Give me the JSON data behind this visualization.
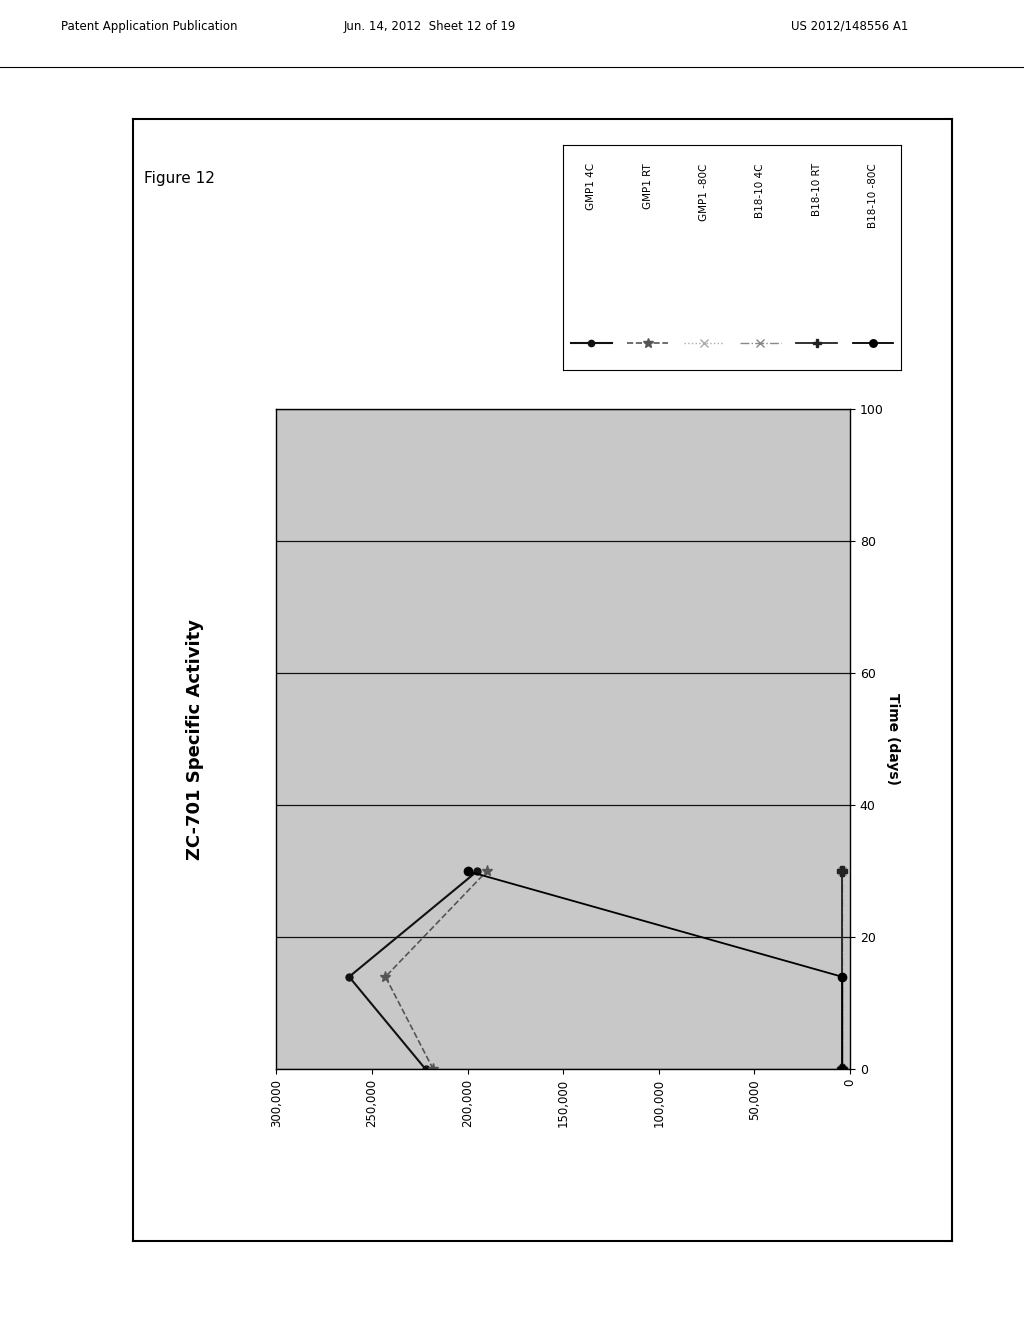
{
  "title": "ZC-701 Specific Activity",
  "time_label": "Time (days)",
  "figure_label": "Figure 12",
  "header_left": "Patent Application Publication",
  "header_center": "Jun. 14, 2012  Sheet 12 of 19",
  "header_right": "US 2012/148556 A1",
  "activity_lim": [
    0,
    300000
  ],
  "time_lim": [
    0,
    100
  ],
  "activity_ticks": [
    0,
    50000,
    100000,
    150000,
    200000,
    250000,
    300000
  ],
  "time_ticks": [
    0,
    20,
    40,
    60,
    80,
    100
  ],
  "series": [
    {
      "label": "GMP1 4C",
      "color": "#111111",
      "marker": "o",
      "markersize": 5,
      "linestyle": "-",
      "linewidth": 1.5,
      "time": [
        0,
        14,
        30
      ],
      "activity": [
        222000,
        262000,
        195000
      ]
    },
    {
      "label": "GMP1 RT",
      "color": "#555555",
      "marker": "*",
      "markersize": 8,
      "linestyle": "--",
      "linewidth": 1.2,
      "time": [
        0,
        14,
        30
      ],
      "activity": [
        218000,
        243000,
        190000
      ]
    },
    {
      "label": "GMP1 -80C",
      "color": "#aaaaaa",
      "marker": "x",
      "markersize": 6,
      "linestyle": ":",
      "linewidth": 1.0,
      "time": [
        0,
        30
      ],
      "activity": [
        4000,
        4000
      ]
    },
    {
      "label": "B18-10 4C",
      "color": "#888888",
      "marker": "x",
      "markersize": 6,
      "linestyle": "-.",
      "linewidth": 1.0,
      "time": [
        0,
        30
      ],
      "activity": [
        4000,
        4000
      ]
    },
    {
      "label": "B18-10 RT",
      "color": "#222222",
      "marker": "P",
      "markersize": 7,
      "linestyle": "-",
      "linewidth": 1.3,
      "time": [
        0,
        30
      ],
      "activity": [
        4000,
        4000
      ]
    },
    {
      "label": "B18-10 -80C",
      "color": "#000000",
      "marker": "o",
      "markersize": 6,
      "linestyle": "-",
      "linewidth": 1.3,
      "time": [
        0,
        14,
        30
      ],
      "activity": [
        4000,
        4000,
        200000
      ]
    }
  ],
  "plot_area_color": "#c8c8c8",
  "grid_color": "#111111",
  "grid_linewidth": 0.9,
  "figsize": [
    10.24,
    13.2
  ],
  "dpi": 100
}
